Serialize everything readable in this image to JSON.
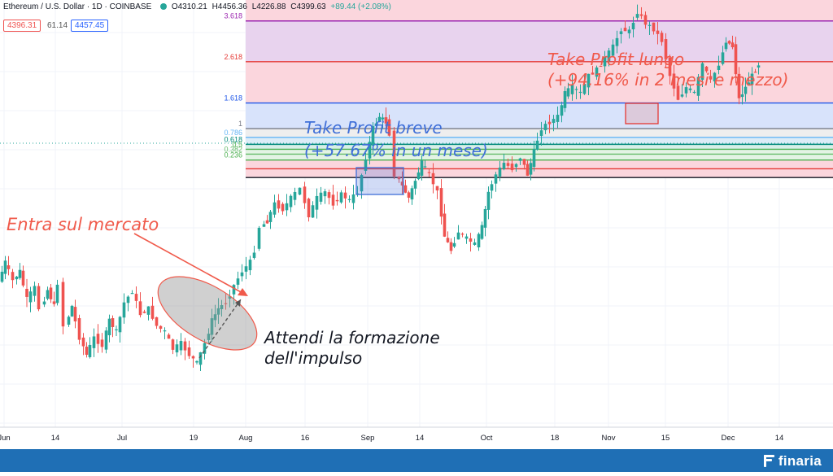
{
  "header": {
    "symbol": "Ethereum / U.S. Dollar · 1D · COINBASE",
    "open": "O4310.21",
    "high": "H4456.36",
    "low": "L4226.88",
    "close": "C4399.63",
    "change": "+89.44 (+2.08%)"
  },
  "pills": {
    "sell": "4396.31",
    "spread": "61.14",
    "buy": "4457.45"
  },
  "brand": "finaria",
  "colors": {
    "up": "#26a69a",
    "down": "#ef5350",
    "annotation_red": "#f05a4b",
    "annotation_blue": "#3f6fd8",
    "footer": "#1f6fb5"
  },
  "chart_data": {
    "type": "candlestick",
    "x_tick_labels": [
      "Jun",
      "14",
      "Jul",
      "19",
      "Aug",
      "16",
      "Sep",
      "14",
      "Oct",
      "18",
      "Nov",
      "15",
      "Dec",
      "14"
    ],
    "ylim": [
      1280,
      4950
    ],
    "fib_levels": [
      {
        "label": "3.618",
        "price": 4770,
        "color": "#9c27b0"
      },
      {
        "label": "2.618",
        "price": 4420,
        "color": "#e53935"
      },
      {
        "label": "1.618",
        "price": 4065,
        "color": "#1e56e8"
      },
      {
        "label": "1",
        "price": 3845,
        "color": "#787b86"
      },
      {
        "label": "0.786",
        "price": 3770,
        "color": "#64b5f6"
      },
      {
        "label": "0.618",
        "price": 3710,
        "color": "#00897b"
      },
      {
        "label": "0.5",
        "price": 3668,
        "color": "#4caf50"
      },
      {
        "label": "0.382",
        "price": 3626,
        "color": "#66bb6a"
      },
      {
        "label": "0.236",
        "price": 3575,
        "color": "#4caf50"
      },
      {
        "label": "",
        "price": 3500,
        "color": "#e53935"
      },
      {
        "label": "",
        "price": 3425,
        "color": "#131722"
      }
    ],
    "zones": [
      {
        "from": 4770,
        "to": 4950,
        "color": "#fbd6dd"
      },
      {
        "from": 4420,
        "to": 4770,
        "color": "#e8d3ee"
      },
      {
        "from": 4065,
        "to": 4420,
        "color": "#fbd6dd"
      },
      {
        "from": 3845,
        "to": 4065,
        "color": "#d8e3fb"
      },
      {
        "from": 3770,
        "to": 3845,
        "color": "#eeeeee"
      },
      {
        "from": 3710,
        "to": 3770,
        "color": "#dcecf7"
      },
      {
        "from": 3668,
        "to": 3710,
        "color": "#d7efe8"
      },
      {
        "from": 3626,
        "to": 3668,
        "color": "#e3f3e4"
      },
      {
        "from": 3575,
        "to": 3626,
        "color": "#e3f3e4"
      },
      {
        "from": 3425,
        "to": 3575,
        "color": "#fbd6dd"
      }
    ],
    "price_path": [
      [
        0,
        2530
      ],
      [
        8,
        2700
      ],
      [
        18,
        2540
      ],
      [
        26,
        2620
      ],
      [
        35,
        2380
      ],
      [
        45,
        2480
      ],
      [
        52,
        2300
      ],
      [
        60,
        2460
      ],
      [
        68,
        2320
      ],
      [
        75,
        2520
      ],
      [
        82,
        2150
      ],
      [
        90,
        2320
      ],
      [
        100,
        2050
      ],
      [
        108,
        1900
      ],
      [
        118,
        2050
      ],
      [
        128,
        1980
      ],
      [
        136,
        2200
      ],
      [
        145,
        2100
      ],
      [
        155,
        2350
      ],
      [
        165,
        2450
      ],
      [
        175,
        2250
      ],
      [
        185,
        2300
      ],
      [
        195,
        2150
      ],
      [
        205,
        2100
      ],
      [
        215,
        1950
      ],
      [
        225,
        2000
      ],
      [
        235,
        1900
      ],
      [
        244,
        1830
      ],
      [
        254,
        2000
      ],
      [
        262,
        2200
      ],
      [
        270,
        2300
      ],
      [
        280,
        2350
      ],
      [
        290,
        2500
      ],
      [
        300,
        2620
      ],
      [
        310,
        2700
      ],
      [
        316,
        2800
      ],
      [
        322,
        3000
      ],
      [
        330,
        3050
      ],
      [
        340,
        3200
      ],
      [
        350,
        3150
      ],
      [
        360,
        3250
      ],
      [
        372,
        3330
      ],
      [
        382,
        3100
      ],
      [
        392,
        3250
      ],
      [
        402,
        3300
      ],
      [
        412,
        3200
      ],
      [
        422,
        3280
      ],
      [
        432,
        3230
      ],
      [
        442,
        3300
      ],
      [
        452,
        3600
      ],
      [
        460,
        3850
      ],
      [
        468,
        3950
      ],
      [
        476,
        3900
      ],
      [
        482,
        3800
      ],
      [
        488,
        3450
      ],
      [
        496,
        3350
      ],
      [
        504,
        3250
      ],
      [
        512,
        3400
      ],
      [
        520,
        3550
      ],
      [
        530,
        3450
      ],
      [
        540,
        3300
      ],
      [
        548,
        2920
      ],
      [
        556,
        2800
      ],
      [
        566,
        2960
      ],
      [
        576,
        2900
      ],
      [
        586,
        2850
      ],
      [
        594,
        3000
      ],
      [
        602,
        3300
      ],
      [
        612,
        3450
      ],
      [
        622,
        3550
      ],
      [
        632,
        3500
      ],
      [
        642,
        3600
      ],
      [
        650,
        3450
      ],
      [
        658,
        3650
      ],
      [
        668,
        3850
      ],
      [
        678,
        3900
      ],
      [
        688,
        3950
      ],
      [
        696,
        4150
      ],
      [
        706,
        4200
      ],
      [
        716,
        4150
      ],
      [
        726,
        4300
      ],
      [
        736,
        4350
      ],
      [
        746,
        4450
      ],
      [
        756,
        4550
      ],
      [
        766,
        4700
      ],
      [
        776,
        4680
      ],
      [
        786,
        4850
      ],
      [
        796,
        4750
      ],
      [
        806,
        4700
      ],
      [
        816,
        4600
      ],
      [
        826,
        4300
      ],
      [
        836,
        4100
      ],
      [
        846,
        4200
      ],
      [
        856,
        4150
      ],
      [
        866,
        4400
      ],
      [
        876,
        4250
      ],
      [
        886,
        4400
      ],
      [
        894,
        4600
      ],
      [
        902,
        4550
      ],
      [
        910,
        4100
      ],
      [
        918,
        4200
      ],
      [
        926,
        4300
      ],
      [
        934,
        4400
      ]
    ],
    "annotations": {
      "tp_long_1": "Take Profit lungo",
      "tp_long_2": "(+94.16% in 2 mesi e mezzo)",
      "tp_short_1": "Take Profit breve",
      "tp_short_2": "(+57.67% in un mese)",
      "entry": "Entra sul mercato",
      "wait_1": "Attendi la formazione",
      "wait_2": "dell'impulso"
    }
  }
}
